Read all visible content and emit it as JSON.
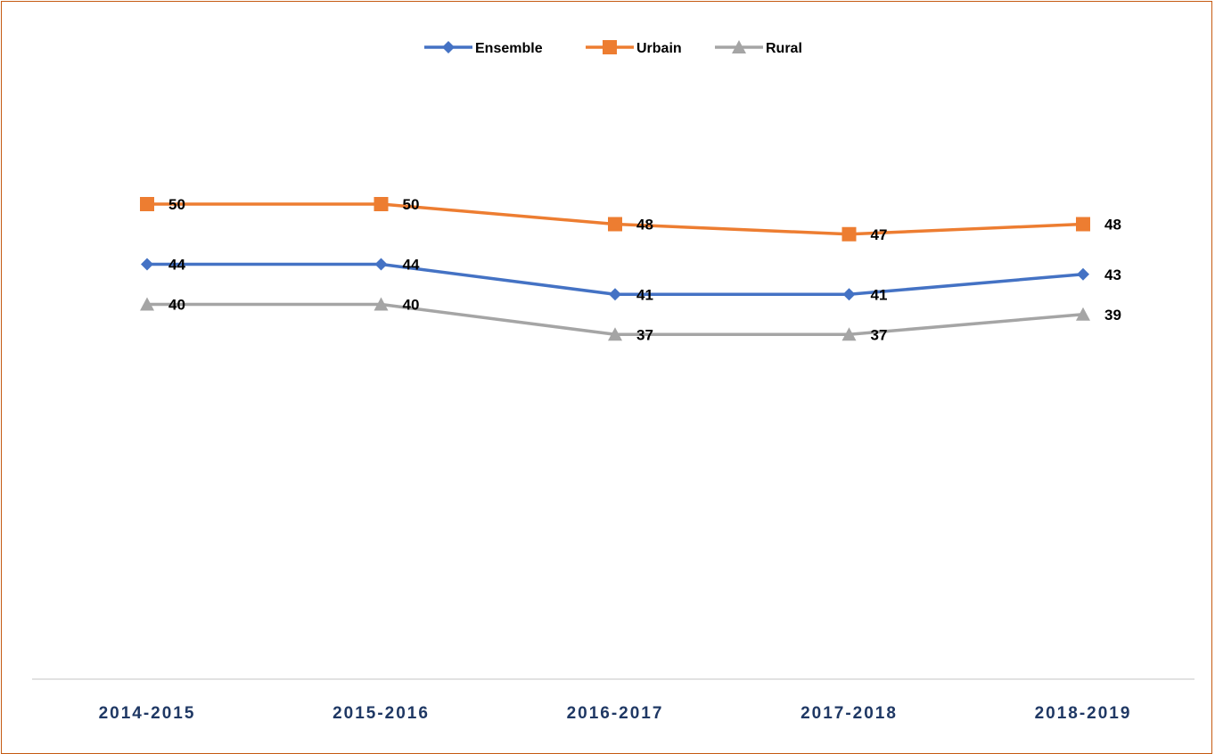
{
  "chart_data": {
    "type": "line",
    "title": "",
    "xlabel": "",
    "ylabel": "",
    "categories": [
      "2014-2015",
      "2015-2016",
      "2016-2017",
      "2017-2018",
      "2018-2019"
    ],
    "series": [
      {
        "name": "Ensemble",
        "values": [
          44,
          44,
          41,
          41,
          43
        ],
        "color": "#4472C4",
        "marker": "diamond"
      },
      {
        "name": "Urbain",
        "values": [
          50,
          50,
          48,
          47,
          48
        ],
        "color": "#ED7D31",
        "marker": "square"
      },
      {
        "name": "Rural",
        "values": [
          40,
          40,
          37,
          37,
          39
        ],
        "color": "#A5A5A5",
        "marker": "triangle"
      }
    ],
    "data_labels": true,
    "grid": false,
    "legend_position": "top-center",
    "frame_color": "#C55A11",
    "axis_color": "#D9D9D9",
    "tick_label_color": "#1F3864"
  }
}
